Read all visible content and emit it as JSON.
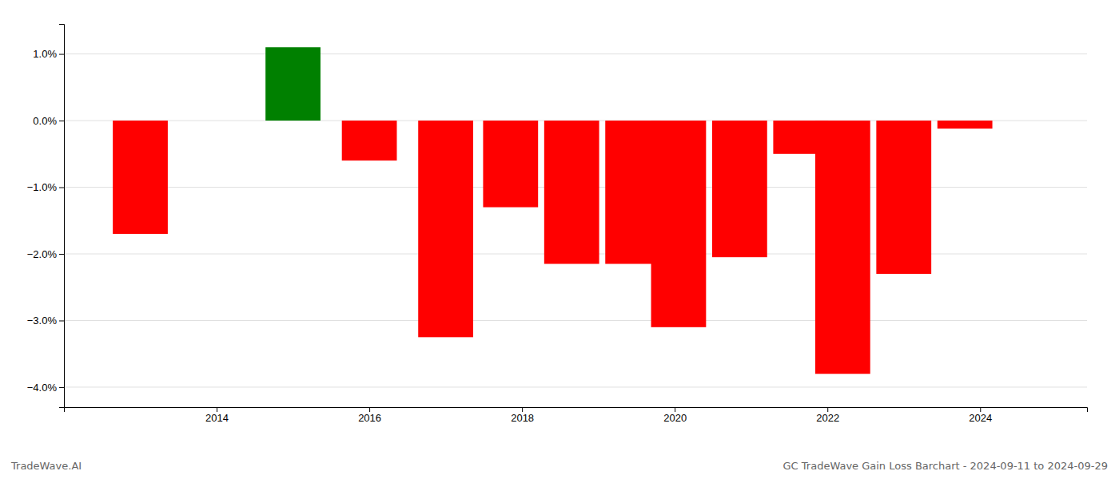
{
  "chart_data": {
    "type": "bar",
    "title": "GC TradeWave Gain Loss Barchart - 2024-09-11 to 2024-09-29",
    "annotations": [
      "TradeWave.AI"
    ],
    "x": [
      2013,
      2015,
      2016,
      2017,
      2017.85,
      2018.65,
      2019.45,
      2020.05,
      2020.85,
      2021.65,
      2022.2,
      2023.0,
      2023.8
    ],
    "values": [
      -1.7,
      1.1,
      -0.6,
      -3.25,
      -1.3,
      -2.15,
      -2.15,
      -3.1,
      -2.05,
      -0.5,
      -3.8,
      -2.3,
      -0.12
    ],
    "colors": [
      "#ff0000",
      "#008000",
      "#ff0000",
      "#ff0000",
      "#ff0000",
      "#ff0000",
      "#ff0000",
      "#ff0000",
      "#ff0000",
      "#ff0000",
      "#ff0000",
      "#ff0000",
      "#ff0000"
    ],
    "xlim": [
      2012.0,
      2025.4
    ],
    "xticks": [
      2014,
      2016,
      2018,
      2020,
      2022,
      2024
    ],
    "ylim": [
      -4.3,
      1.45
    ],
    "yticks": [
      {
        "value": -4.0,
        "label": "−4.0%"
      },
      {
        "value": -3.0,
        "label": "−3.0%"
      },
      {
        "value": -2.0,
        "label": "−2.0%"
      },
      {
        "value": -1.0,
        "label": "−1.0%"
      },
      {
        "value": 0.0,
        "label": "0.0%"
      },
      {
        "value": 1.0,
        "label": "1.0%"
      }
    ],
    "grid": true
  }
}
